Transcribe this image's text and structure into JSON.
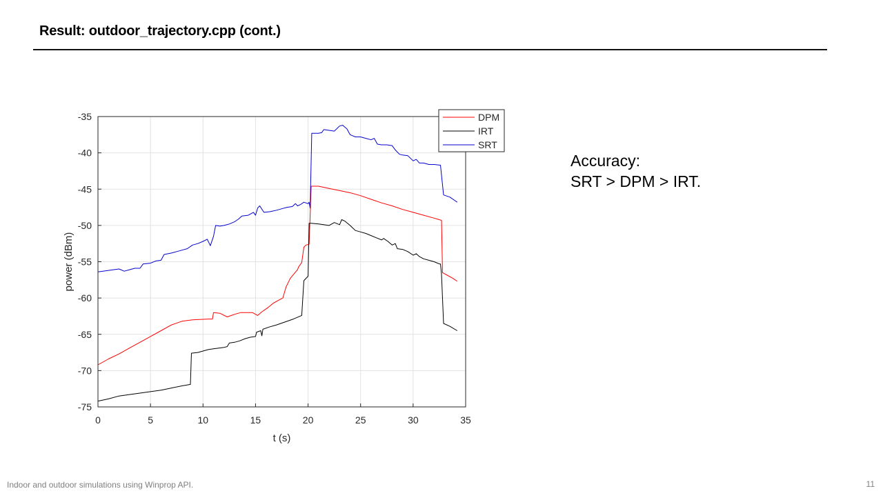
{
  "slide": {
    "title": "Result: outdoor_trajectory.cpp (cont.)",
    "footer": "Indoor and outdoor simulations using Winprop API.",
    "page_number": "11"
  },
  "accuracy": {
    "line1": "Accuracy:",
    "line2": "SRT > DPM > IRT."
  },
  "chart_data": {
    "type": "line",
    "title": "",
    "xlabel": "t (s)",
    "ylabel": "power (dBm)",
    "xlim": [
      0,
      35
    ],
    "ylim": [
      -75,
      -35
    ],
    "xticks": [
      0,
      5,
      10,
      15,
      20,
      25,
      30,
      35
    ],
    "yticks": [
      -75,
      -70,
      -65,
      -60,
      -55,
      -50,
      -45,
      -40,
      -35
    ],
    "grid": true,
    "legend_position": "top-right",
    "series": [
      {
        "name": "DPM",
        "color": "#ff0000",
        "points": [
          [
            0,
            -69.2
          ],
          [
            1,
            -68.4
          ],
          [
            2,
            -67.7
          ],
          [
            3,
            -66.9
          ],
          [
            4,
            -66.1
          ],
          [
            5,
            -65.3
          ],
          [
            6,
            -64.5
          ],
          [
            7,
            -63.7
          ],
          [
            8,
            -63.2
          ],
          [
            9,
            -63.0
          ],
          [
            10.5,
            -62.9
          ],
          [
            10.9,
            -62.9
          ],
          [
            11,
            -62.0
          ],
          [
            11.6,
            -62.1
          ],
          [
            12.3,
            -62.6
          ],
          [
            12.7,
            -62.4
          ],
          [
            13.1,
            -62.2
          ],
          [
            13.6,
            -62.0
          ],
          [
            14.2,
            -62.0
          ],
          [
            14.7,
            -62.0
          ],
          [
            15.2,
            -62.4
          ],
          [
            15.6,
            -61.9
          ],
          [
            16.2,
            -61.3
          ],
          [
            16.7,
            -60.7
          ],
          [
            17.2,
            -60.3
          ],
          [
            17.6,
            -60.0
          ],
          [
            17.9,
            -58.5
          ],
          [
            18.3,
            -57.3
          ],
          [
            18.7,
            -56.6
          ],
          [
            19,
            -56.1
          ],
          [
            19.1,
            -55.7
          ],
          [
            19.4,
            -55.1
          ],
          [
            19.6,
            -53.0
          ],
          [
            19.8,
            -52.7
          ],
          [
            20.1,
            -52.6
          ],
          [
            20.3,
            -44.6
          ],
          [
            21,
            -44.6
          ],
          [
            22,
            -44.9
          ],
          [
            23,
            -45.2
          ],
          [
            24,
            -45.5
          ],
          [
            25,
            -45.9
          ],
          [
            26,
            -46.4
          ],
          [
            27,
            -46.9
          ],
          [
            28,
            -47.3
          ],
          [
            29,
            -47.8
          ],
          [
            30,
            -48.2
          ],
          [
            31,
            -48.6
          ],
          [
            32,
            -49.0
          ],
          [
            32.7,
            -49.3
          ],
          [
            32.8,
            -56.5
          ],
          [
            33.3,
            -56.9
          ],
          [
            33.8,
            -57.3
          ],
          [
            34.2,
            -57.7
          ]
        ]
      },
      {
        "name": "IRT",
        "color": "#000000",
        "points": [
          [
            0,
            -74.2
          ],
          [
            1,
            -73.9
          ],
          [
            2,
            -73.5
          ],
          [
            3,
            -73.3
          ],
          [
            4,
            -73.1
          ],
          [
            5,
            -72.9
          ],
          [
            6,
            -72.7
          ],
          [
            7,
            -72.4
          ],
          [
            8,
            -72.1
          ],
          [
            8.8,
            -71.9
          ],
          [
            8.9,
            -67.6
          ],
          [
            9.5,
            -67.5
          ],
          [
            10,
            -67.3
          ],
          [
            10.5,
            -67.1
          ],
          [
            11,
            -67.0
          ],
          [
            11.5,
            -66.9
          ],
          [
            12,
            -66.8
          ],
          [
            12.3,
            -66.7
          ],
          [
            12.5,
            -66.2
          ],
          [
            13,
            -66.1
          ],
          [
            13.5,
            -65.9
          ],
          [
            14,
            -65.6
          ],
          [
            14.5,
            -65.4
          ],
          [
            15,
            -65.3
          ],
          [
            15.1,
            -64.7
          ],
          [
            15.5,
            -64.5
          ],
          [
            15.6,
            -65.2
          ],
          [
            15.7,
            -64.3
          ],
          [
            16.3,
            -64.0
          ],
          [
            17,
            -63.7
          ],
          [
            17.8,
            -63.3
          ],
          [
            18.6,
            -62.9
          ],
          [
            19.4,
            -62.4
          ],
          [
            19.6,
            -57.6
          ],
          [
            20,
            -57.0
          ],
          [
            20.1,
            -49.7
          ],
          [
            20.3,
            -49.7
          ],
          [
            21,
            -49.8
          ],
          [
            22,
            -50.0
          ],
          [
            22.5,
            -49.6
          ],
          [
            23,
            -49.9
          ],
          [
            23.2,
            -49.2
          ],
          [
            23.5,
            -49.4
          ],
          [
            24,
            -50.0
          ],
          [
            24.5,
            -50.7
          ],
          [
            25,
            -50.9
          ],
          [
            25.5,
            -51.1
          ],
          [
            26,
            -51.4
          ],
          [
            26.5,
            -51.7
          ],
          [
            27,
            -52.0
          ],
          [
            27.2,
            -51.8
          ],
          [
            27.6,
            -52.2
          ],
          [
            28,
            -52.7
          ],
          [
            28.3,
            -52.5
          ],
          [
            28.5,
            -53.2
          ],
          [
            29,
            -53.3
          ],
          [
            29.5,
            -53.6
          ],
          [
            30,
            -54.1
          ],
          [
            30.3,
            -53.9
          ],
          [
            30.6,
            -54.3
          ],
          [
            31,
            -54.6
          ],
          [
            31.5,
            -54.8
          ],
          [
            32,
            -55.0
          ],
          [
            32.5,
            -55.3
          ],
          [
            32.6,
            -55.3
          ],
          [
            32.7,
            -56.7
          ],
          [
            32.9,
            -63.5
          ],
          [
            33.5,
            -63.9
          ],
          [
            34.2,
            -64.5
          ]
        ]
      },
      {
        "name": "SRT",
        "color": "#0000cc",
        "points": [
          [
            0,
            -56.4
          ],
          [
            1,
            -56.2
          ],
          [
            2,
            -56.0
          ],
          [
            2.5,
            -56.3
          ],
          [
            3,
            -56.1
          ],
          [
            3.5,
            -55.9
          ],
          [
            4,
            -55.9
          ],
          [
            4.3,
            -55.3
          ],
          [
            5,
            -55.2
          ],
          [
            5.5,
            -54.9
          ],
          [
            6,
            -54.8
          ],
          [
            6.3,
            -54.0
          ],
          [
            7,
            -53.8
          ],
          [
            7.5,
            -53.6
          ],
          [
            8,
            -53.4
          ],
          [
            8.5,
            -53.2
          ],
          [
            9,
            -52.7
          ],
          [
            9.5,
            -52.5
          ],
          [
            10,
            -52.2
          ],
          [
            10.4,
            -51.9
          ],
          [
            10.7,
            -52.8
          ],
          [
            11,
            -51.5
          ],
          [
            11.2,
            -50.0
          ],
          [
            11.6,
            -50.1
          ],
          [
            12,
            -50.0
          ],
          [
            12.5,
            -49.8
          ],
          [
            13,
            -49.5
          ],
          [
            13.4,
            -49.1
          ],
          [
            13.7,
            -48.7
          ],
          [
            14.3,
            -48.6
          ],
          [
            14.8,
            -48.2
          ],
          [
            15,
            -48.6
          ],
          [
            15.2,
            -47.6
          ],
          [
            15.4,
            -47.3
          ],
          [
            15.8,
            -48.2
          ],
          [
            16.4,
            -48.1
          ],
          [
            17,
            -47.9
          ],
          [
            17.5,
            -47.7
          ],
          [
            18,
            -47.5
          ],
          [
            18.5,
            -47.4
          ],
          [
            18.8,
            -47.0
          ],
          [
            19,
            -47.3
          ],
          [
            19.3,
            -47.1
          ],
          [
            19.6,
            -46.8
          ],
          [
            20,
            -47.0
          ],
          [
            20.1,
            -46.8
          ],
          [
            20.2,
            -47.6
          ],
          [
            20.35,
            -37.3
          ],
          [
            21,
            -37.3
          ],
          [
            21.3,
            -37.2
          ],
          [
            21.5,
            -36.8
          ],
          [
            22,
            -36.9
          ],
          [
            22.5,
            -37.0
          ],
          [
            23,
            -36.3
          ],
          [
            23.3,
            -36.2
          ],
          [
            23.7,
            -36.7
          ],
          [
            24,
            -37.5
          ],
          [
            24.5,
            -37.8
          ],
          [
            25,
            -37.8
          ],
          [
            25.5,
            -38.0
          ],
          [
            26,
            -38.2
          ],
          [
            26.3,
            -38.0
          ],
          [
            26.6,
            -38.8
          ],
          [
            27,
            -38.9
          ],
          [
            27.5,
            -38.9
          ],
          [
            28,
            -39.0
          ],
          [
            28.3,
            -39.6
          ],
          [
            28.7,
            -40.2
          ],
          [
            29,
            -40.3
          ],
          [
            29.5,
            -40.4
          ],
          [
            30,
            -41.1
          ],
          [
            30.3,
            -40.9
          ],
          [
            30.6,
            -41.4
          ],
          [
            31,
            -41.4
          ],
          [
            31.5,
            -41.6
          ],
          [
            32,
            -41.6
          ],
          [
            32.6,
            -41.7
          ],
          [
            32.9,
            -45.8
          ],
          [
            33.5,
            -46.1
          ],
          [
            34,
            -46.6
          ],
          [
            34.2,
            -46.8
          ]
        ]
      }
    ]
  }
}
